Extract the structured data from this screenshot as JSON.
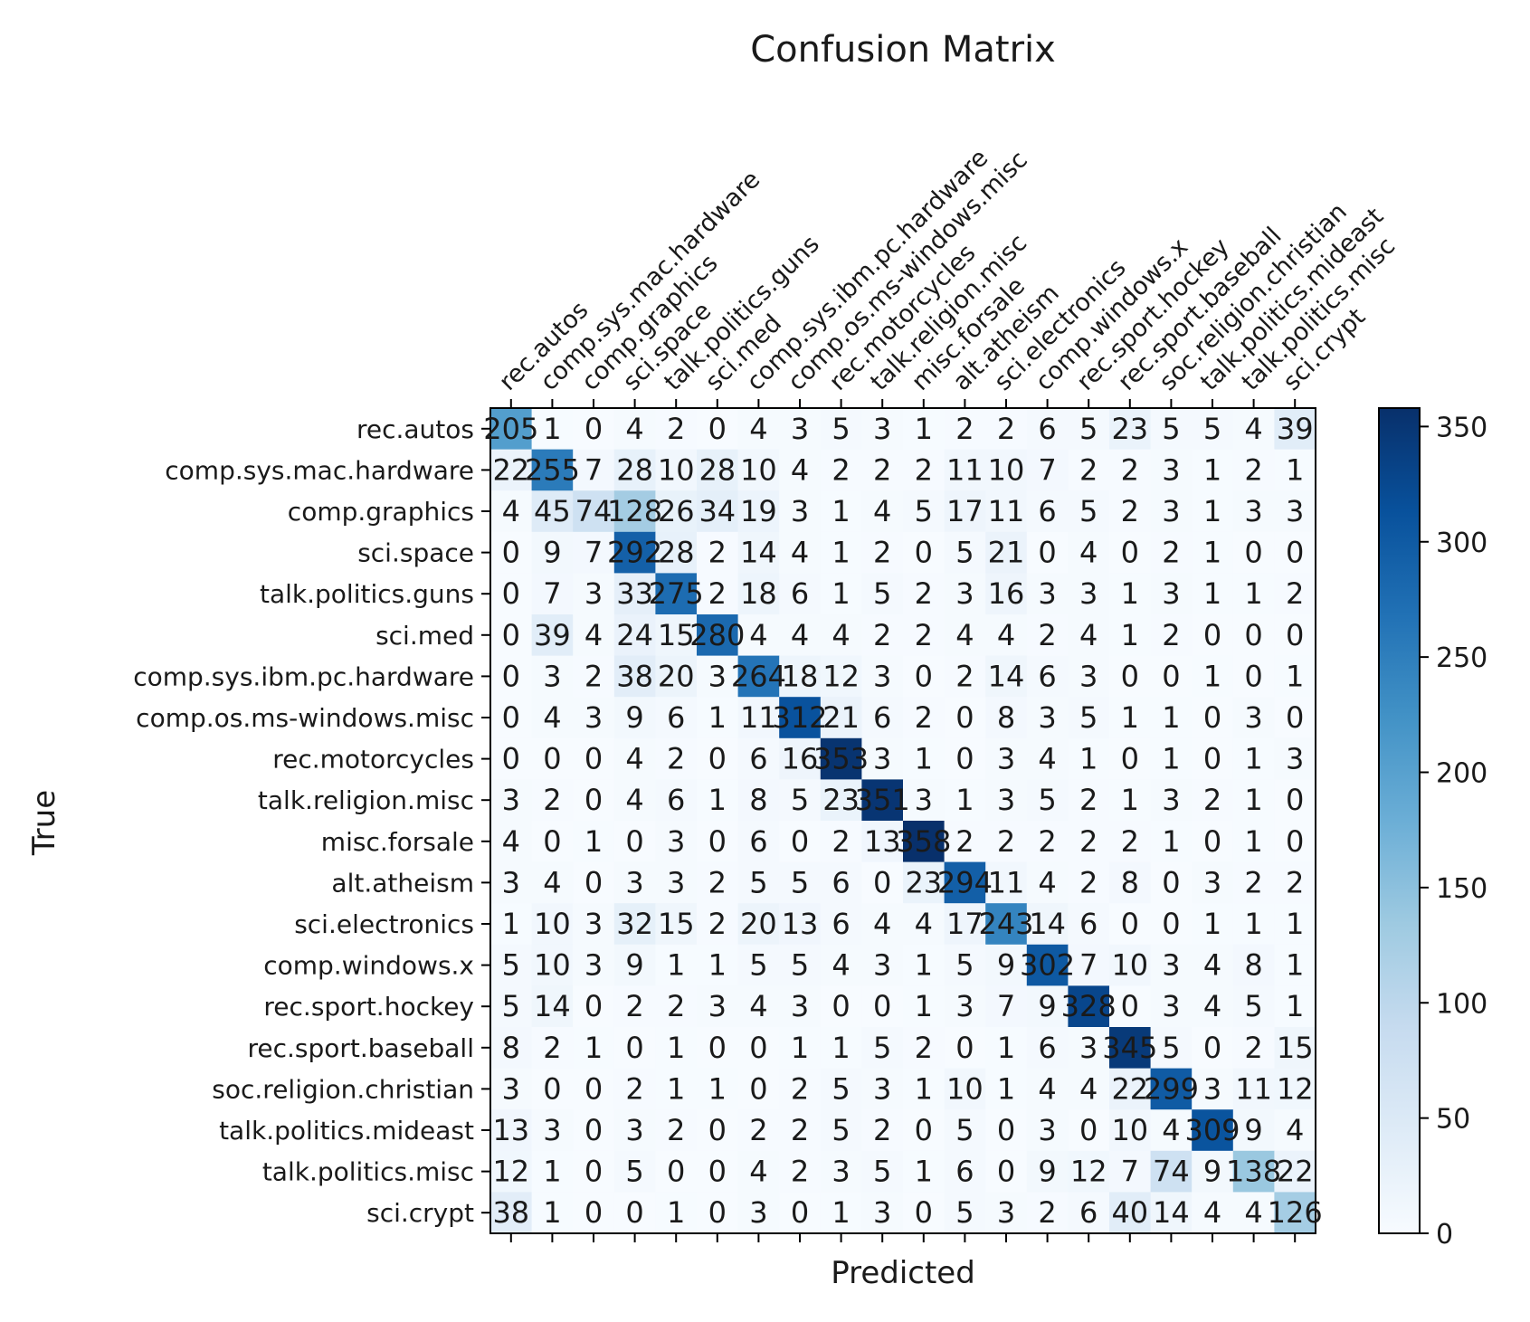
{
  "chart_data": {
    "type": "heatmap",
    "title": "Confusion Matrix",
    "xlabel": "Predicted",
    "ylabel": "True",
    "colormap": "Blues",
    "row_labels": [
      "rec.autos",
      "comp.sys.mac.hardware",
      "comp.graphics",
      "sci.space",
      "talk.politics.guns",
      "sci.med",
      "comp.sys.ibm.pc.hardware",
      "comp.os.ms-windows.misc",
      "rec.motorcycles",
      "talk.religion.misc",
      "misc.forsale",
      "alt.atheism",
      "sci.electronics",
      "comp.windows.x",
      "rec.sport.hockey",
      "rec.sport.baseball",
      "soc.religion.christian",
      "talk.politics.mideast",
      "talk.politics.misc",
      "sci.crypt"
    ],
    "col_labels": [
      "rec.autos",
      "comp.sys.mac.hardware",
      "comp.graphics",
      "sci.space",
      "talk.politics.guns",
      "sci.med",
      "comp.sys.ibm.pc.hardware",
      "comp.os.ms-windows.misc",
      "rec.motorcycles",
      "talk.religion.misc",
      "misc.forsale",
      "alt.atheism",
      "sci.electronics",
      "comp.windows.x",
      "rec.sport.hockey",
      "rec.sport.baseball",
      "soc.religion.christian",
      "talk.politics.mideast",
      "talk.politics.misc",
      "sci.crypt"
    ],
    "matrix": [
      [
        205,
        1,
        0,
        4,
        2,
        0,
        4,
        3,
        5,
        3,
        1,
        2,
        2,
        6,
        5,
        23,
        5,
        5,
        4,
        39
      ],
      [
        22,
        255,
        7,
        28,
        10,
        28,
        10,
        4,
        2,
        2,
        2,
        11,
        10,
        7,
        2,
        2,
        3,
        1,
        2,
        1
      ],
      [
        4,
        45,
        74,
        128,
        26,
        34,
        19,
        3,
        1,
        4,
        5,
        17,
        11,
        6,
        5,
        2,
        3,
        1,
        3,
        3
      ],
      [
        0,
        9,
        7,
        292,
        28,
        2,
        14,
        4,
        1,
        2,
        0,
        5,
        21,
        0,
        4,
        0,
        2,
        1,
        0,
        0
      ],
      [
        0,
        7,
        3,
        33,
        275,
        2,
        18,
        6,
        1,
        5,
        2,
        3,
        16,
        3,
        3,
        1,
        3,
        1,
        1,
        2
      ],
      [
        0,
        39,
        4,
        24,
        15,
        280,
        4,
        4,
        4,
        2,
        2,
        4,
        4,
        2,
        4,
        1,
        2,
        0,
        0,
        0
      ],
      [
        0,
        3,
        2,
        38,
        20,
        3,
        264,
        18,
        12,
        3,
        0,
        2,
        14,
        6,
        3,
        0,
        0,
        1,
        0,
        1
      ],
      [
        0,
        4,
        3,
        9,
        6,
        1,
        11,
        312,
        21,
        6,
        2,
        0,
        8,
        3,
        5,
        1,
        1,
        0,
        3,
        0
      ],
      [
        0,
        0,
        0,
        4,
        2,
        0,
        6,
        16,
        353,
        3,
        1,
        0,
        3,
        4,
        1,
        0,
        1,
        0,
        1,
        3
      ],
      [
        3,
        2,
        0,
        4,
        6,
        1,
        8,
        5,
        23,
        351,
        3,
        1,
        3,
        5,
        2,
        1,
        3,
        2,
        1,
        0
      ],
      [
        4,
        0,
        1,
        0,
        3,
        0,
        6,
        0,
        2,
        13,
        358,
        2,
        2,
        2,
        2,
        2,
        1,
        0,
        1,
        0
      ],
      [
        3,
        4,
        0,
        3,
        3,
        2,
        5,
        5,
        6,
        0,
        23,
        294,
        11,
        4,
        2,
        8,
        0,
        3,
        2,
        2
      ],
      [
        1,
        10,
        3,
        32,
        15,
        2,
        20,
        13,
        6,
        4,
        4,
        17,
        243,
        14,
        6,
        0,
        0,
        1,
        1,
        1
      ],
      [
        5,
        10,
        3,
        9,
        1,
        1,
        5,
        5,
        4,
        3,
        1,
        5,
        9,
        302,
        7,
        10,
        3,
        4,
        8,
        1
      ],
      [
        5,
        14,
        0,
        2,
        2,
        3,
        4,
        3,
        0,
        0,
        1,
        3,
        7,
        9,
        328,
        0,
        3,
        4,
        5,
        1
      ],
      [
        8,
        2,
        1,
        0,
        1,
        0,
        0,
        1,
        1,
        5,
        2,
        0,
        1,
        6,
        3,
        345,
        5,
        0,
        2,
        15
      ],
      [
        3,
        0,
        0,
        2,
        1,
        1,
        0,
        2,
        5,
        3,
        1,
        10,
        1,
        4,
        4,
        22,
        299,
        3,
        11,
        12
      ],
      [
        13,
        3,
        0,
        3,
        2,
        0,
        2,
        2,
        5,
        2,
        0,
        5,
        0,
        3,
        0,
        10,
        4,
        309,
        9,
        4
      ],
      [
        12,
        1,
        0,
        5,
        0,
        0,
        4,
        2,
        3,
        5,
        1,
        6,
        0,
        9,
        12,
        7,
        74,
        9,
        138,
        22
      ],
      [
        38,
        1,
        0,
        0,
        1,
        0,
        3,
        0,
        1,
        3,
        0,
        5,
        3,
        2,
        6,
        40,
        14,
        4,
        4,
        126
      ]
    ],
    "colorbar": {
      "min": 0,
      "max": 358,
      "ticks": [
        0,
        50,
        100,
        150,
        200,
        250,
        300,
        350
      ]
    }
  }
}
